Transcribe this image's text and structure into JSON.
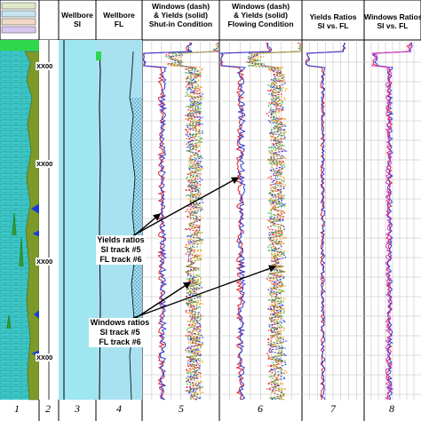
{
  "track_headers": {
    "t2": "Wellbore\nSI",
    "t3": "Wellbore\nFL",
    "t4": "Windows (dash)\n& Yields (solid)\nShut-in Condition",
    "t5": "Windows (dash)\n& Yields (solid)\nFlowing Condition",
    "t6": "Yields Ratios\nSI vs. FL",
    "t7": "Windows Ratios\nSI vs. FL"
  },
  "track_numbers": [
    "1",
    "2",
    "3",
    "4",
    "5",
    "6",
    "7",
    "8"
  ],
  "depth_labels": [
    "XX00",
    "XX00",
    "XX00",
    "XX00"
  ],
  "annotations": {
    "yields": "Yields ratios\nSI track #5\nFL track #6",
    "windows": "Windows ratios\nSI track #5\nFL track #6"
  },
  "legend_tracks": [
    "VOL_AAAOR",
    "VOL_COLOR",
    "V_V",
    "VOL_ABCDE",
    "VOL_BCDEF"
  ],
  "colors": {
    "lithology_fill": "#3cc9c9",
    "lithology_line": "#2a8f8f",
    "olive": "#7c9a2a",
    "blue": "#1a3bd6",
    "green_top": "#2ed84a",
    "wellbore_si": "#9ee6f0",
    "wellbore_fl": "#a8e2f0",
    "red": "#e0202a",
    "blue_curve": "#2a3ad8",
    "green_curve": "#3aa83a",
    "orange_curve": "#e8a020",
    "pink_curve": "#e040c0"
  },
  "chart_data": {
    "type": "line",
    "tracks": [
      {
        "id": "t4",
        "name": "Shut-in Condition",
        "series": [
          {
            "values": [
              0.1,
              0.9,
              0.3,
              0.6,
              0.4,
              0.5,
              0.4,
              0.6,
              0.5,
              0.5
            ]
          },
          {
            "values": [
              0.7,
              0.95,
              0.6,
              0.7,
              0.62,
              0.66,
              0.7,
              0.65,
              0.68,
              0.66
            ]
          }
        ]
      },
      {
        "id": "t5",
        "name": "Flowing Condition",
        "series": [
          {
            "values": [
              0.1,
              0.9,
              0.3,
              0.6,
              0.4,
              0.5,
              0.4,
              0.6,
              0.5,
              0.5
            ]
          },
          {
            "values": [
              0.7,
              0.95,
              0.6,
              0.7,
              0.62,
              0.66,
              0.7,
              0.65,
              0.68,
              0.66
            ]
          }
        ]
      },
      {
        "id": "t6",
        "name": "Yields Ratios",
        "series": [
          {
            "values": [
              0.2,
              0.95,
              0.25,
              0.35,
              0.3,
              0.32,
              0.31,
              0.34,
              0.3,
              0.33
            ]
          }
        ]
      },
      {
        "id": "t7",
        "name": "Windows Ratios",
        "series": [
          {
            "values": [
              0.3,
              0.85,
              0.4,
              0.45,
              0.42,
              0.46,
              0.44,
              0.43,
              0.45,
              0.44
            ]
          }
        ]
      }
    ]
  }
}
